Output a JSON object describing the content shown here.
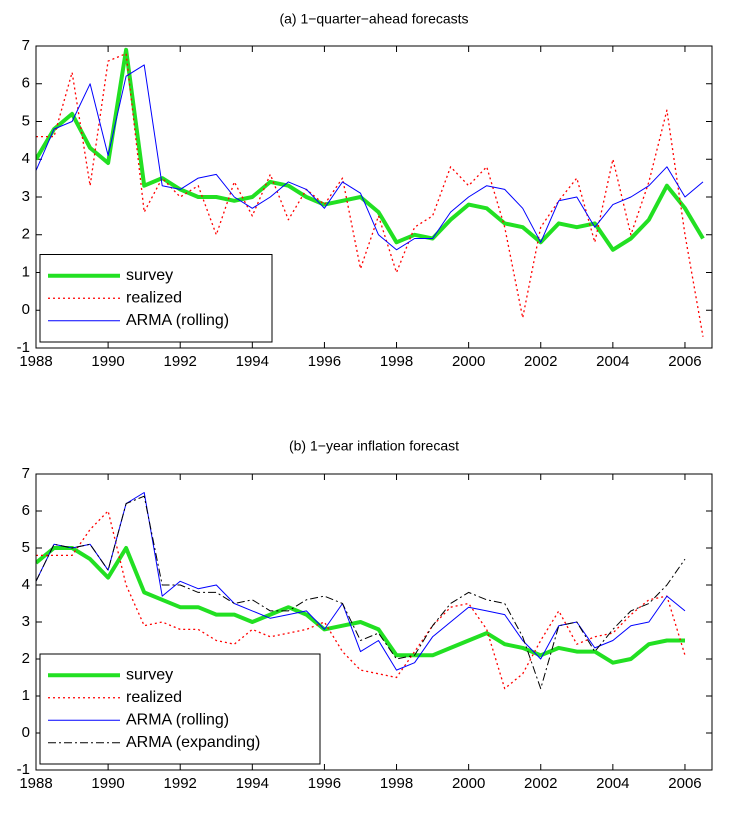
{
  "chart_data": [
    {
      "type": "line",
      "title": "(a) 1−quarter−ahead forecasts",
      "x": [
        1988,
        1988.5,
        1989,
        1989.5,
        1990,
        1990.5,
        1991,
        1991.5,
        1992,
        1992.5,
        1993,
        1993.5,
        1994,
        1994.5,
        1995,
        1995.5,
        1996,
        1996.5,
        1997,
        1997.5,
        1998,
        1998.5,
        1999,
        1999.5,
        2000,
        2000.5,
        2001,
        2001.5,
        2002,
        2002.5,
        2003,
        2003.5,
        2004,
        2004.5,
        2005,
        2005.5,
        2006,
        2006.5
      ],
      "series": [
        {
          "name": "survey",
          "color": "#22e022",
          "style": "solid",
          "linewidth": 4,
          "values": [
            4.0,
            4.8,
            5.2,
            4.3,
            3.9,
            6.9,
            3.3,
            3.5,
            3.2,
            3.0,
            3.0,
            2.9,
            3.0,
            3.4,
            3.3,
            3.0,
            2.8,
            2.9,
            3.0,
            2.6,
            1.8,
            2.0,
            1.9,
            2.4,
            2.8,
            2.7,
            2.3,
            2.2,
            1.8,
            2.3,
            2.2,
            2.3,
            1.6,
            1.9,
            2.4,
            3.3,
            2.7,
            1.9
          ]
        },
        {
          "name": "realized",
          "color": "#ff0000",
          "style": "dotted",
          "linewidth": 1.3,
          "values": [
            4.6,
            4.6,
            6.3,
            3.3,
            6.6,
            6.8,
            2.6,
            3.5,
            3.0,
            3.3,
            2.0,
            3.4,
            2.5,
            3.6,
            2.4,
            3.2,
            2.8,
            3.5,
            1.1,
            2.5,
            1.0,
            2.2,
            2.5,
            3.8,
            3.3,
            3.8,
            2.2,
            -0.2,
            2.2,
            2.9,
            3.5,
            1.8,
            4.0,
            2.0,
            3.4,
            5.3,
            2.0,
            -0.7
          ]
        },
        {
          "name": "ARMA (rolling)",
          "color": "#0000ff",
          "style": "solid",
          "linewidth": 1,
          "values": [
            3.7,
            4.8,
            5.0,
            6.0,
            4.1,
            6.2,
            6.5,
            3.3,
            3.2,
            3.5,
            3.6,
            3.0,
            2.7,
            3.0,
            3.4,
            3.2,
            2.7,
            3.4,
            3.1,
            2.0,
            1.6,
            1.9,
            1.9,
            2.6,
            3.0,
            3.3,
            3.2,
            2.7,
            1.8,
            2.9,
            3.0,
            2.2,
            2.8,
            3.0,
            3.3,
            3.8,
            3.0,
            3.4
          ]
        }
      ],
      "xlim": [
        1988,
        2006.75
      ],
      "xticks": [
        1988,
        1990,
        1992,
        1994,
        1996,
        1998,
        2000,
        2002,
        2004,
        2006
      ],
      "ylim": [
        -1,
        7
      ],
      "yticks": [
        -1,
        0,
        1,
        2,
        3,
        4,
        5,
        6,
        7
      ],
      "grid": false,
      "legend": "lower left"
    },
    {
      "type": "line",
      "title": "(b) 1−year inflation forecast",
      "x": [
        1988,
        1988.5,
        1989,
        1989.5,
        1990,
        1990.5,
        1991,
        1991.5,
        1992,
        1992.5,
        1993,
        1993.5,
        1994,
        1994.5,
        1995,
        1995.5,
        1996,
        1996.5,
        1997,
        1997.5,
        1998,
        1998.5,
        1999,
        1999.5,
        2000,
        2000.5,
        2001,
        2001.5,
        2002,
        2002.5,
        2003,
        2003.5,
        2004,
        2004.5,
        2005,
        2005.5,
        2006
      ],
      "series": [
        {
          "name": "survey",
          "color": "#22e022",
          "style": "solid",
          "linewidth": 4,
          "values": [
            4.6,
            5.0,
            5.0,
            4.7,
            4.2,
            5.0,
            3.8,
            3.6,
            3.4,
            3.4,
            3.2,
            3.2,
            3.0,
            3.2,
            3.4,
            3.2,
            2.8,
            2.9,
            3.0,
            2.8,
            2.1,
            2.1,
            2.1,
            2.3,
            2.5,
            2.7,
            2.4,
            2.3,
            2.1,
            2.3,
            2.2,
            2.2,
            1.9,
            2.0,
            2.4,
            2.5,
            2.5
          ]
        },
        {
          "name": "realized",
          "color": "#ff0000",
          "style": "dotted",
          "linewidth": 1.3,
          "values": [
            4.8,
            4.8,
            4.8,
            5.5,
            6.0,
            4.0,
            2.9,
            3.0,
            2.8,
            2.8,
            2.5,
            2.4,
            2.8,
            2.6,
            2.7,
            2.8,
            3.0,
            2.2,
            1.7,
            1.6,
            1.5,
            2.2,
            2.9,
            3.4,
            3.5,
            2.8,
            1.2,
            1.6,
            2.5,
            3.3,
            2.4,
            2.6,
            2.7,
            3.2,
            3.6,
            3.7,
            2.1
          ]
        },
        {
          "name": "ARMA (rolling)",
          "color": "#0000ff",
          "style": "solid",
          "linewidth": 1,
          "values": [
            4.1,
            5.1,
            5.0,
            5.1,
            4.4,
            6.2,
            6.5,
            3.7,
            4.1,
            3.9,
            4.0,
            3.5,
            3.3,
            3.1,
            3.2,
            3.3,
            2.8,
            3.5,
            2.2,
            2.5,
            1.7,
            1.9,
            2.6,
            3.0,
            3.4,
            3.3,
            3.2,
            2.5,
            2.0,
            2.9,
            3.0,
            2.3,
            2.5,
            2.9,
            3.0,
            3.7,
            3.3
          ]
        },
        {
          "name": "ARMA (expanding)",
          "color": "#000000",
          "style": "dashdot",
          "linewidth": 1,
          "values": [
            4.1,
            5.1,
            5.0,
            5.1,
            4.4,
            6.2,
            6.4,
            4.0,
            4.0,
            3.8,
            3.8,
            3.5,
            3.6,
            3.3,
            3.3,
            3.6,
            3.7,
            3.5,
            2.5,
            2.7,
            2.0,
            2.1,
            2.9,
            3.5,
            3.8,
            3.6,
            3.5,
            2.6,
            1.2,
            2.9,
            3.0,
            2.2,
            2.8,
            3.3,
            3.5,
            4.0,
            4.7
          ]
        }
      ],
      "xlim": [
        1988,
        2006.75
      ],
      "xticks": [
        1988,
        1990,
        1992,
        1994,
        1996,
        1998,
        2000,
        2002,
        2004,
        2006
      ],
      "ylim": [
        -1,
        7
      ],
      "yticks": [
        -1,
        0,
        1,
        2,
        3,
        4,
        5,
        6,
        7
      ],
      "grid": false,
      "legend": "lower left"
    }
  ]
}
